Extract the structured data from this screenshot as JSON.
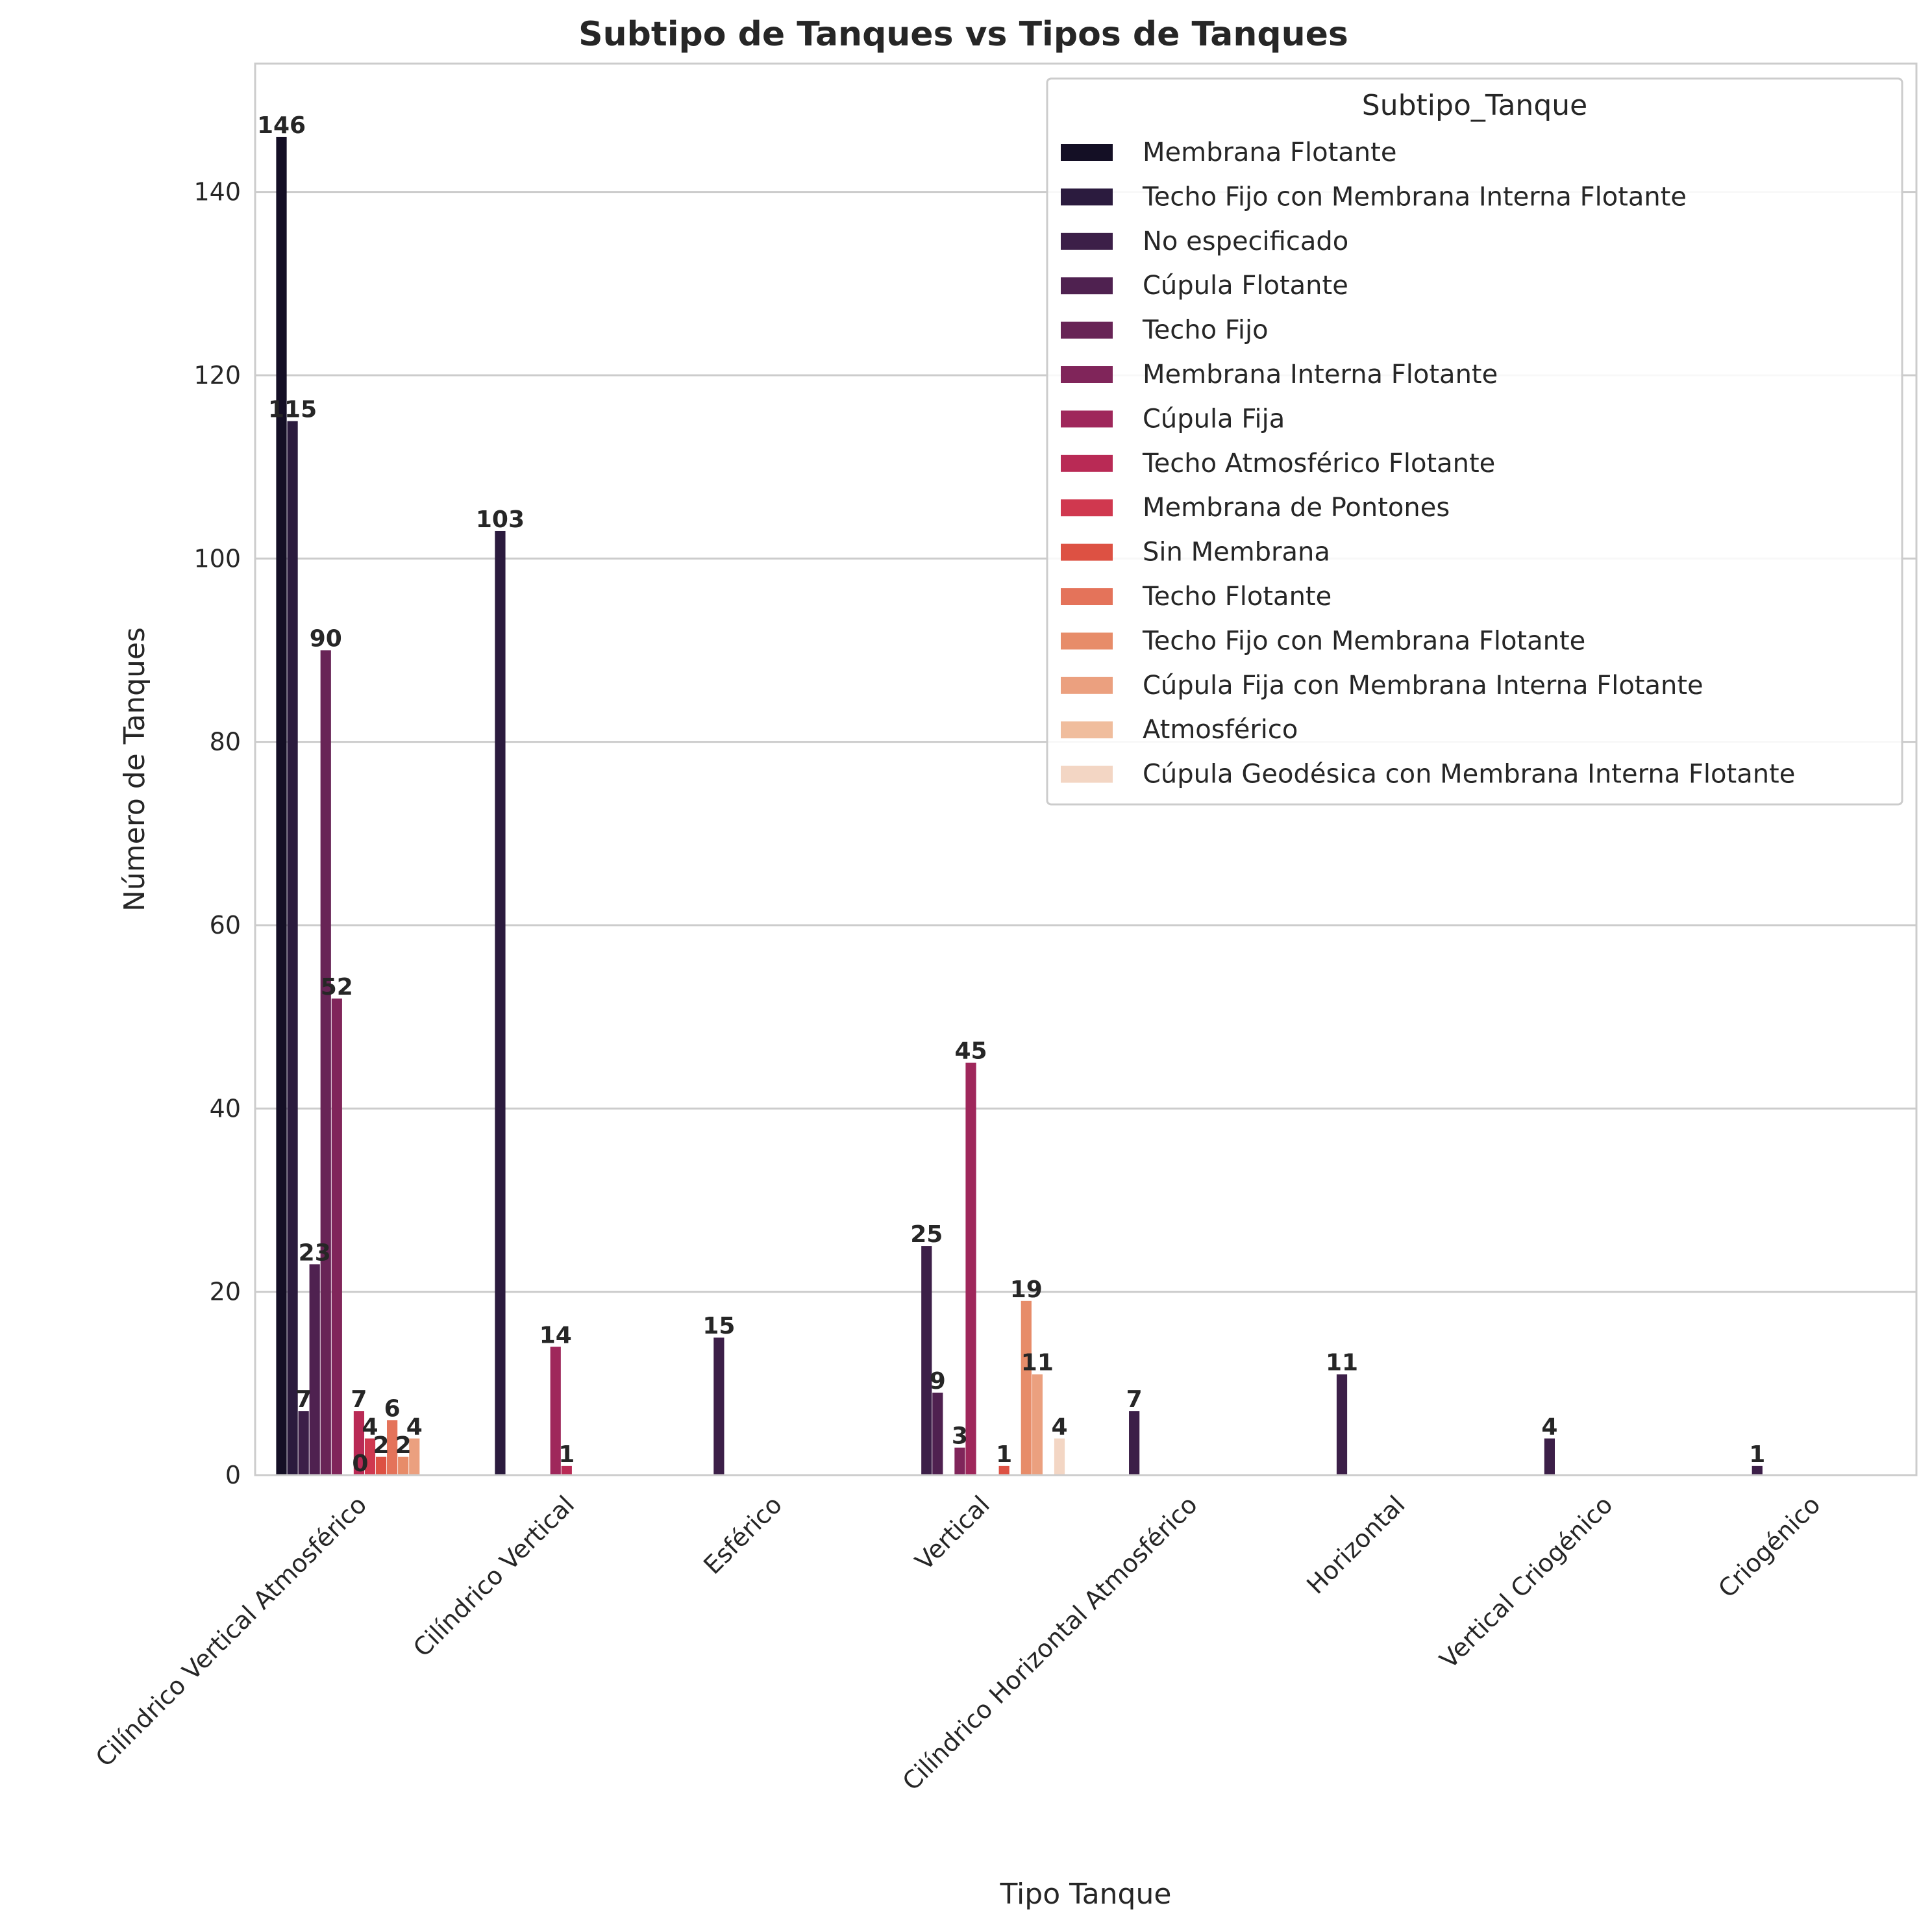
{
  "chart_data": {
    "type": "bar",
    "title": "Subtipo de Tanques vs Tipos de Tanques",
    "xlabel": "Tipo Tanque",
    "ylabel": "Número de Tanques",
    "ylim": [
      0,
      154
    ],
    "yticks": [
      0,
      20,
      40,
      60,
      80,
      100,
      120,
      140
    ],
    "grid": true,
    "legend_title": "Subtipo_Tanque",
    "legend_position": "top-right",
    "categories": [
      "Cilíndrico Vertical Atmosférico",
      "Cilíndrico Vertical",
      "Esférico",
      "Vertical",
      "Cilíndrico Horizontal Atmosférico",
      "Horizontal",
      "Vertical Criogénico",
      "Criogénico"
    ],
    "series": [
      {
        "name": "Membrana Flotante",
        "color": "#140f25",
        "values": [
          146,
          null,
          null,
          null,
          null,
          null,
          null,
          null
        ]
      },
      {
        "name": "Techo Fijo con Membrana Interna Flotante",
        "color": "#2b1b3e",
        "values": [
          115,
          103,
          null,
          null,
          null,
          null,
          null,
          null
        ]
      },
      {
        "name": "No especificado",
        "color": "#3c1f48",
        "values": [
          7,
          null,
          15,
          25,
          7,
          11,
          4,
          1
        ]
      },
      {
        "name": "Cúpula Flotante",
        "color": "#4f2150",
        "values": [
          23,
          null,
          null,
          9,
          null,
          null,
          null,
          null
        ]
      },
      {
        "name": "Techo Fijo",
        "color": "#682456",
        "values": [
          90,
          null,
          null,
          null,
          null,
          null,
          null,
          null
        ]
      },
      {
        "name": "Membrana Interna Flotante",
        "color": "#80255a",
        "values": [
          52,
          null,
          null,
          3,
          null,
          null,
          null,
          null
        ]
      },
      {
        "name": "Cúpula Fija",
        "color": "#9f275b",
        "values": [
          null,
          14,
          null,
          45,
          null,
          null,
          null,
          null
        ]
      },
      {
        "name": "Techo Atmosférico Flotante",
        "color": "#b92a55",
        "values": [
          7,
          1,
          null,
          null,
          null,
          null,
          null,
          null
        ]
      },
      {
        "name": "Membrana de Pontones",
        "color": "#d0384f",
        "values": [
          4,
          null,
          null,
          null,
          null,
          null,
          null,
          null
        ]
      },
      {
        "name": "Sin Membrana",
        "color": "#dd5143",
        "values": [
          2,
          null,
          null,
          1,
          null,
          null,
          null,
          null
        ]
      },
      {
        "name": "Techo Flotante",
        "color": "#e4735a",
        "values": [
          6,
          null,
          null,
          null,
          null,
          null,
          null,
          null
        ]
      },
      {
        "name": "Techo Fijo con Membrana Flotante",
        "color": "#e78c69",
        "values": [
          2,
          null,
          null,
          19,
          null,
          null,
          null,
          null
        ]
      },
      {
        "name": "Cúpula Fija con Membrana Interna Flotante",
        "color": "#eba07f",
        "values": [
          4,
          null,
          null,
          11,
          null,
          null,
          null,
          null
        ]
      },
      {
        "name": "Atmosférico",
        "color": "#f0bd9d",
        "values": [
          null,
          null,
          null,
          null,
          null,
          null,
          null,
          null
        ]
      },
      {
        "name": "Cúpula Geodésica con Membrana Interna Flotante",
        "color": "#f3d6c4",
        "values": [
          null,
          null,
          null,
          4,
          null,
          null,
          null,
          null
        ]
      }
    ],
    "extra_labels": [
      {
        "category": 0,
        "text": "0"
      }
    ]
  }
}
